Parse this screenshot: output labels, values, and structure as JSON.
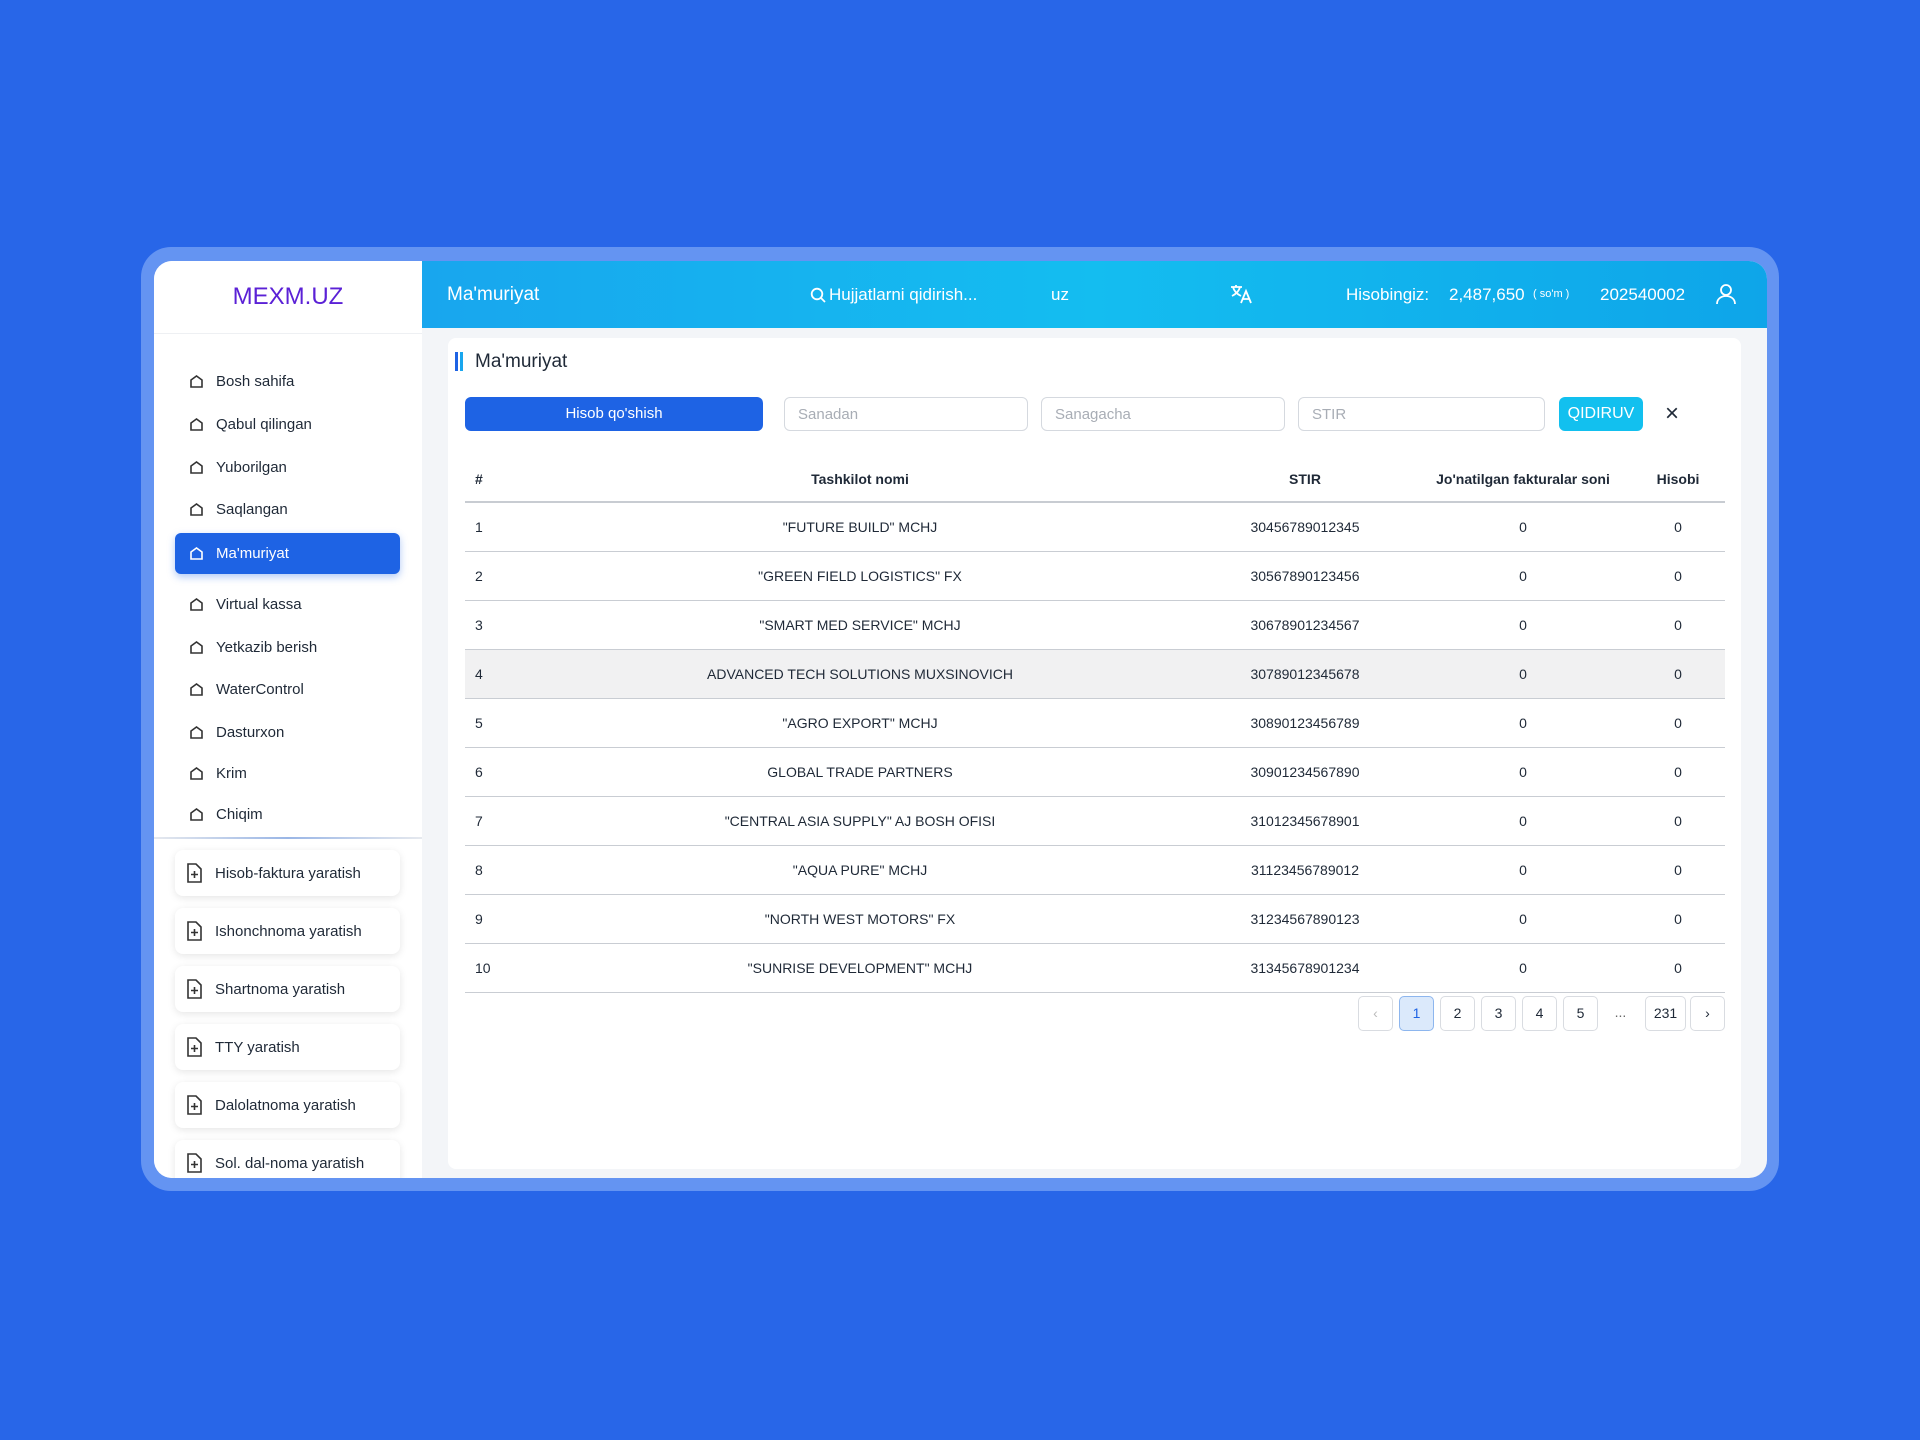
{
  "header": {
    "logo": "MEXM.UZ",
    "page_title": "Ma'muriyat",
    "search_placeholder": "Hujjatlarni qidirish...",
    "language": "uz",
    "balance_label": "Hisobingiz:",
    "balance": "2,487,650",
    "currency": "so'm",
    "account": "202540002"
  },
  "sidebar": {
    "menu": [
      "Bosh sahifa",
      "Qabul qilingan",
      "Yuborilgan",
      "Saqlangan",
      "Ma'muriyat",
      "Virtual kassa",
      "Yetkazib berish",
      "WaterControl",
      "Dasturxon",
      "Krim",
      "Chiqim"
    ],
    "active": 4,
    "actions": [
      "Hisob-faktura yaratish",
      "Ishonchnoma yaratish",
      "Shartnoma yaratish",
      "TTY yaratish",
      "Dalolatnoma yaratish",
      "Sol. dal-noma yaratish"
    ]
  },
  "content": {
    "title": "Ma'muriyat",
    "toolbar": {
      "add_button": "Hisob qo'shish",
      "from_placeholder": "Sanadan",
      "to_placeholder": "Sanagacha",
      "stir_placeholder": "STIR",
      "search_button": "QIDIRUV",
      "clear_button": "×"
    },
    "table": {
      "headers": [
        "#",
        "Tashkilot nomi",
        "STIR",
        "Jo'natilgan fakturalar soni",
        "Hisobi"
      ],
      "highlighted_row": 3,
      "rows": [
        [
          "1",
          "\"FUTURE BUILD\" MCHJ",
          "30456789012345",
          "0",
          "0"
        ],
        [
          "2",
          "\"GREEN FIELD LOGISTICS\" FX",
          "30567890123456",
          "0",
          "0"
        ],
        [
          "3",
          "\"SMART MED SERVICE\" MCHJ",
          "30678901234567",
          "0",
          "0"
        ],
        [
          "4",
          "ADVANCED TECH SOLUTIONS MUXSINOVICH",
          "30789012345678",
          "0",
          "0"
        ],
        [
          "5",
          "\"AGRO EXPORT\" MCHJ",
          "30890123456789",
          "0",
          "0"
        ],
        [
          "6",
          "GLOBAL TRADE PARTNERS",
          "30901234567890",
          "0",
          "0"
        ],
        [
          "7",
          "\"CENTRAL ASIA SUPPLY\" AJ BOSH OFISI",
          "31012345678901",
          "0",
          "0"
        ],
        [
          "8",
          "\"AQUA PURE\" MCHJ",
          "31123456789012",
          "0",
          "0"
        ],
        [
          "9",
          "\"NORTH WEST MOTORS\" FX",
          "31234567890123",
          "0",
          "0"
        ],
        [
          "10",
          "\"SUNRISE DEVELOPMENT\" MCHJ",
          "31345678901234",
          "0",
          "0"
        ]
      ]
    },
    "pagination": {
      "pages": [
        "1",
        "2",
        "3",
        "4",
        "5",
        "...",
        "231"
      ],
      "active": 0
    }
  }
}
